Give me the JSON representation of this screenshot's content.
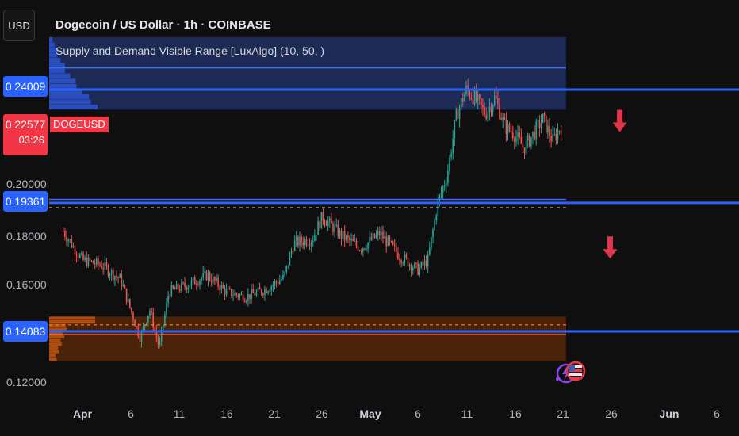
{
  "header": {
    "currency_button": "USD",
    "title": "Dogecoin / US Dollar · 1h · COINBASE",
    "indicator": "Supply and Demand Visible Range [LuxAlgo] (10, 50, )",
    "symbol_label": "DOGEUSD"
  },
  "price_axis": {
    "labels": [
      "0.20000",
      "0.18000",
      "0.16000",
      "0.12000"
    ],
    "tags": {
      "upper": "0.24009",
      "middle": "0.19361",
      "lower": "0.14083"
    },
    "current_price": "0.22577",
    "countdown": "03:26"
  },
  "time_axis": {
    "labels": [
      "Apr",
      "6",
      "11",
      "16",
      "21",
      "26",
      "May",
      "6",
      "11",
      "16",
      "21",
      "26",
      "Jun",
      "6"
    ]
  },
  "colors": {
    "background": "#0f0f0f",
    "up_candle": "#26a69a",
    "down_candle": "#ef5350",
    "supply_zone": "#1c2a55",
    "demand_zone": "#4a2208",
    "level_line": "#2962ff",
    "arrow": "#e0354a"
  },
  "chart_data": {
    "type": "candlestick",
    "symbol": "DOGEUSD",
    "timeframe": "1h",
    "x_dates": [
      "Apr 1",
      "Apr 6",
      "Apr 11",
      "Apr 16",
      "Apr 21",
      "Apr 26",
      "May 1",
      "May 6",
      "May 11",
      "May 16",
      "May 21",
      "May 26",
      "Jun 1",
      "Jun 6"
    ],
    "ylim": [
      0.116,
      0.264
    ],
    "yticks": [
      0.12,
      0.16,
      0.18,
      0.2
    ],
    "price_path": [
      {
        "date": "Mar 30",
        "price": 0.182
      },
      {
        "date": "Apr 1",
        "price": 0.17
      },
      {
        "date": "Apr 3",
        "price": 0.168
      },
      {
        "date": "Apr 5",
        "price": 0.162
      },
      {
        "date": "Apr 7",
        "price": 0.138
      },
      {
        "date": "Apr 8",
        "price": 0.15
      },
      {
        "date": "Apr 9",
        "price": 0.134
      },
      {
        "date": "Apr 10",
        "price": 0.157
      },
      {
        "date": "Apr 12",
        "price": 0.16
      },
      {
        "date": "Apr 14",
        "price": 0.164
      },
      {
        "date": "Apr 16",
        "price": 0.157
      },
      {
        "date": "Apr 18",
        "price": 0.155
      },
      {
        "date": "Apr 20",
        "price": 0.158
      },
      {
        "date": "Apr 22",
        "price": 0.163
      },
      {
        "date": "Apr 23",
        "price": 0.177
      },
      {
        "date": "Apr 25",
        "price": 0.179
      },
      {
        "date": "Apr 26",
        "price": 0.188
      },
      {
        "date": "Apr 28",
        "price": 0.18
      },
      {
        "date": "Apr 30",
        "price": 0.175
      },
      {
        "date": "May 2",
        "price": 0.181
      },
      {
        "date": "May 4",
        "price": 0.172
      },
      {
        "date": "May 6",
        "price": 0.166
      },
      {
        "date": "May 7",
        "price": 0.17
      },
      {
        "date": "May 8",
        "price": 0.193
      },
      {
        "date": "May 9",
        "price": 0.205
      },
      {
        "date": "May 10",
        "price": 0.23
      },
      {
        "date": "May 11",
        "price": 0.24
      },
      {
        "date": "May 12",
        "price": 0.236
      },
      {
        "date": "May 13",
        "price": 0.23
      },
      {
        "date": "May 14",
        "price": 0.237
      },
      {
        "date": "May 15",
        "price": 0.225
      },
      {
        "date": "May 16",
        "price": 0.222
      },
      {
        "date": "May 17",
        "price": 0.216
      },
      {
        "date": "May 18",
        "price": 0.222
      },
      {
        "date": "May 19",
        "price": 0.228
      },
      {
        "date": "May 20",
        "price": 0.219
      },
      {
        "date": "May 21",
        "price": 0.226
      }
    ],
    "zones": {
      "supply": {
        "top": 0.2616,
        "bottom": 0.2318
      },
      "demand": {
        "top": 0.1469,
        "bottom": 0.1286
      }
    },
    "levels": [
      {
        "value": 0.24009,
        "label": "0.24009"
      },
      {
        "value": 0.19361,
        "label": "0.19361"
      },
      {
        "value": 0.14083,
        "label": "0.14083"
      }
    ],
    "dashed_levels": [
      0.1916,
      0.1435
    ],
    "arrows": [
      {
        "date": "May 27",
        "price": 0.224,
        "direction": "down"
      },
      {
        "date": "May 26",
        "price": 0.172,
        "direction": "down"
      }
    ],
    "current_price": 0.22577
  }
}
